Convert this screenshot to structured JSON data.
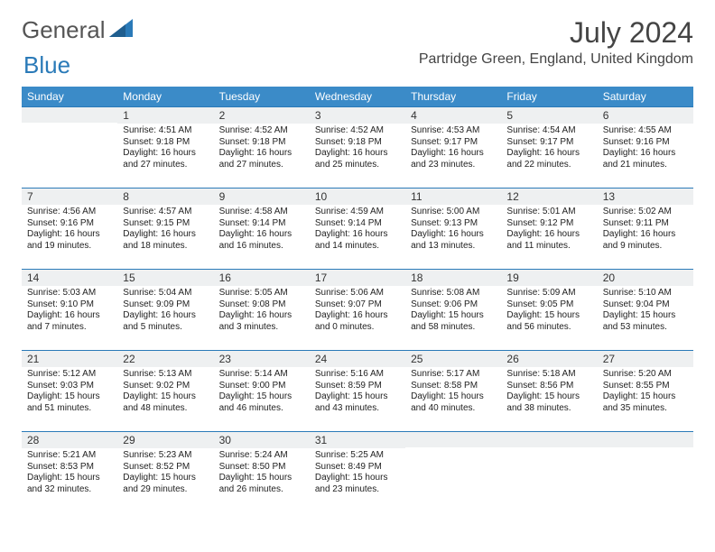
{
  "logo": {
    "general": "General",
    "blue": "Blue"
  },
  "title": "July 2024",
  "location": "Partridge Green, England, United Kingdom",
  "colors": {
    "header_bg": "#3b8bc8",
    "header_text": "#ffffff",
    "daynum_bg": "#eef0f1",
    "border": "#2a7ab8",
    "logo_gray": "#555555",
    "logo_blue": "#2a7ab8"
  },
  "day_headers": [
    "Sunday",
    "Monday",
    "Tuesday",
    "Wednesday",
    "Thursday",
    "Friday",
    "Saturday"
  ],
  "weeks": [
    [
      {
        "n": "",
        "sr": "",
        "ss": "",
        "dl": ""
      },
      {
        "n": "1",
        "sr": "4:51 AM",
        "ss": "9:18 PM",
        "dl": "16 hours and 27 minutes."
      },
      {
        "n": "2",
        "sr": "4:52 AM",
        "ss": "9:18 PM",
        "dl": "16 hours and 27 minutes."
      },
      {
        "n": "3",
        "sr": "4:52 AM",
        "ss": "9:18 PM",
        "dl": "16 hours and 25 minutes."
      },
      {
        "n": "4",
        "sr": "4:53 AM",
        "ss": "9:17 PM",
        "dl": "16 hours and 23 minutes."
      },
      {
        "n": "5",
        "sr": "4:54 AM",
        "ss": "9:17 PM",
        "dl": "16 hours and 22 minutes."
      },
      {
        "n": "6",
        "sr": "4:55 AM",
        "ss": "9:16 PM",
        "dl": "16 hours and 21 minutes."
      }
    ],
    [
      {
        "n": "7",
        "sr": "4:56 AM",
        "ss": "9:16 PM",
        "dl": "16 hours and 19 minutes."
      },
      {
        "n": "8",
        "sr": "4:57 AM",
        "ss": "9:15 PM",
        "dl": "16 hours and 18 minutes."
      },
      {
        "n": "9",
        "sr": "4:58 AM",
        "ss": "9:14 PM",
        "dl": "16 hours and 16 minutes."
      },
      {
        "n": "10",
        "sr": "4:59 AM",
        "ss": "9:14 PM",
        "dl": "16 hours and 14 minutes."
      },
      {
        "n": "11",
        "sr": "5:00 AM",
        "ss": "9:13 PM",
        "dl": "16 hours and 13 minutes."
      },
      {
        "n": "12",
        "sr": "5:01 AM",
        "ss": "9:12 PM",
        "dl": "16 hours and 11 minutes."
      },
      {
        "n": "13",
        "sr": "5:02 AM",
        "ss": "9:11 PM",
        "dl": "16 hours and 9 minutes."
      }
    ],
    [
      {
        "n": "14",
        "sr": "5:03 AM",
        "ss": "9:10 PM",
        "dl": "16 hours and 7 minutes."
      },
      {
        "n": "15",
        "sr": "5:04 AM",
        "ss": "9:09 PM",
        "dl": "16 hours and 5 minutes."
      },
      {
        "n": "16",
        "sr": "5:05 AM",
        "ss": "9:08 PM",
        "dl": "16 hours and 3 minutes."
      },
      {
        "n": "17",
        "sr": "5:06 AM",
        "ss": "9:07 PM",
        "dl": "16 hours and 0 minutes."
      },
      {
        "n": "18",
        "sr": "5:08 AM",
        "ss": "9:06 PM",
        "dl": "15 hours and 58 minutes."
      },
      {
        "n": "19",
        "sr": "5:09 AM",
        "ss": "9:05 PM",
        "dl": "15 hours and 56 minutes."
      },
      {
        "n": "20",
        "sr": "5:10 AM",
        "ss": "9:04 PM",
        "dl": "15 hours and 53 minutes."
      }
    ],
    [
      {
        "n": "21",
        "sr": "5:12 AM",
        "ss": "9:03 PM",
        "dl": "15 hours and 51 minutes."
      },
      {
        "n": "22",
        "sr": "5:13 AM",
        "ss": "9:02 PM",
        "dl": "15 hours and 48 minutes."
      },
      {
        "n": "23",
        "sr": "5:14 AM",
        "ss": "9:00 PM",
        "dl": "15 hours and 46 minutes."
      },
      {
        "n": "24",
        "sr": "5:16 AM",
        "ss": "8:59 PM",
        "dl": "15 hours and 43 minutes."
      },
      {
        "n": "25",
        "sr": "5:17 AM",
        "ss": "8:58 PM",
        "dl": "15 hours and 40 minutes."
      },
      {
        "n": "26",
        "sr": "5:18 AM",
        "ss": "8:56 PM",
        "dl": "15 hours and 38 minutes."
      },
      {
        "n": "27",
        "sr": "5:20 AM",
        "ss": "8:55 PM",
        "dl": "15 hours and 35 minutes."
      }
    ],
    [
      {
        "n": "28",
        "sr": "5:21 AM",
        "ss": "8:53 PM",
        "dl": "15 hours and 32 minutes."
      },
      {
        "n": "29",
        "sr": "5:23 AM",
        "ss": "8:52 PM",
        "dl": "15 hours and 29 minutes."
      },
      {
        "n": "30",
        "sr": "5:24 AM",
        "ss": "8:50 PM",
        "dl": "15 hours and 26 minutes."
      },
      {
        "n": "31",
        "sr": "5:25 AM",
        "ss": "8:49 PM",
        "dl": "15 hours and 23 minutes."
      },
      {
        "n": "",
        "sr": "",
        "ss": "",
        "dl": ""
      },
      {
        "n": "",
        "sr": "",
        "ss": "",
        "dl": ""
      },
      {
        "n": "",
        "sr": "",
        "ss": "",
        "dl": ""
      }
    ]
  ],
  "labels": {
    "sunrise": "Sunrise: ",
    "sunset": "Sunset: ",
    "daylight": "Daylight: "
  }
}
